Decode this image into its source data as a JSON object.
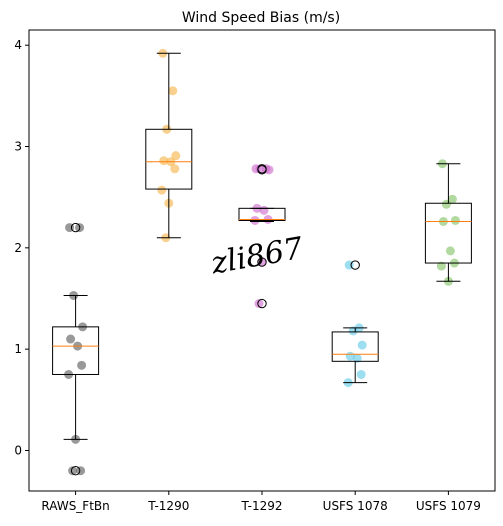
{
  "chart_data": {
    "type": "box",
    "title": "Wind Speed Bias (m/s)",
    "xlabel": "",
    "ylabel": "",
    "ylim": [
      -0.4,
      4.15
    ],
    "y_ticks": [
      0,
      1,
      2,
      3,
      4
    ],
    "grid": false,
    "legend": "none",
    "watermark": "zli867",
    "categories": [
      "RAWS_FtBn",
      "T-1290",
      "T-1292",
      "USFS 1078",
      "USFS 1079"
    ],
    "series": [
      {
        "category": "RAWS_FtBn",
        "color": "#555555",
        "whisker_low": 0.11,
        "q1": 0.75,
        "median": 1.03,
        "q3": 1.22,
        "whisker_high": 1.53,
        "outliers": [
          2.2,
          -0.2
        ],
        "points": [
          2.2,
          2.2,
          1.53,
          1.22,
          1.1,
          1.03,
          0.84,
          0.75,
          0.11,
          -0.2,
          -0.2
        ]
      },
      {
        "category": "T-1290",
        "color": "#f5b041",
        "whisker_low": 2.1,
        "q1": 2.58,
        "median": 2.85,
        "q3": 3.17,
        "whisker_high": 3.92,
        "outliers": [],
        "points": [
          3.92,
          3.55,
          3.17,
          2.91,
          2.86,
          2.85,
          2.78,
          2.57,
          2.44,
          2.1
        ]
      },
      {
        "category": "T-1292",
        "color": "#cc66cc",
        "whisker_low": 2.26,
        "q1": 2.27,
        "median": 2.28,
        "q3": 2.39,
        "whisker_high": 2.39,
        "outliers": [
          2.78,
          2.77,
          1.86,
          1.45
        ],
        "points": [
          2.78,
          2.78,
          2.78,
          2.77,
          2.39,
          2.37,
          2.28,
          2.27,
          1.86,
          1.45
        ]
      },
      {
        "category": "USFS 1078",
        "color": "#5bc8e8",
        "whisker_low": 0.67,
        "q1": 0.88,
        "median": 0.95,
        "q3": 1.17,
        "whisker_high": 1.21,
        "outliers": [
          1.83
        ],
        "points": [
          1.83,
          1.21,
          1.18,
          1.04,
          0.93,
          0.91,
          0.75,
          0.67
        ]
      },
      {
        "category": "USFS 1079",
        "color": "#7fbf5f",
        "whisker_low": 1.67,
        "q1": 1.85,
        "median": 2.26,
        "q3": 2.44,
        "whisker_high": 2.83,
        "outliers": [],
        "points": [
          2.83,
          2.48,
          2.43,
          2.27,
          2.26,
          1.97,
          1.85,
          1.82,
          1.67
        ]
      }
    ]
  }
}
